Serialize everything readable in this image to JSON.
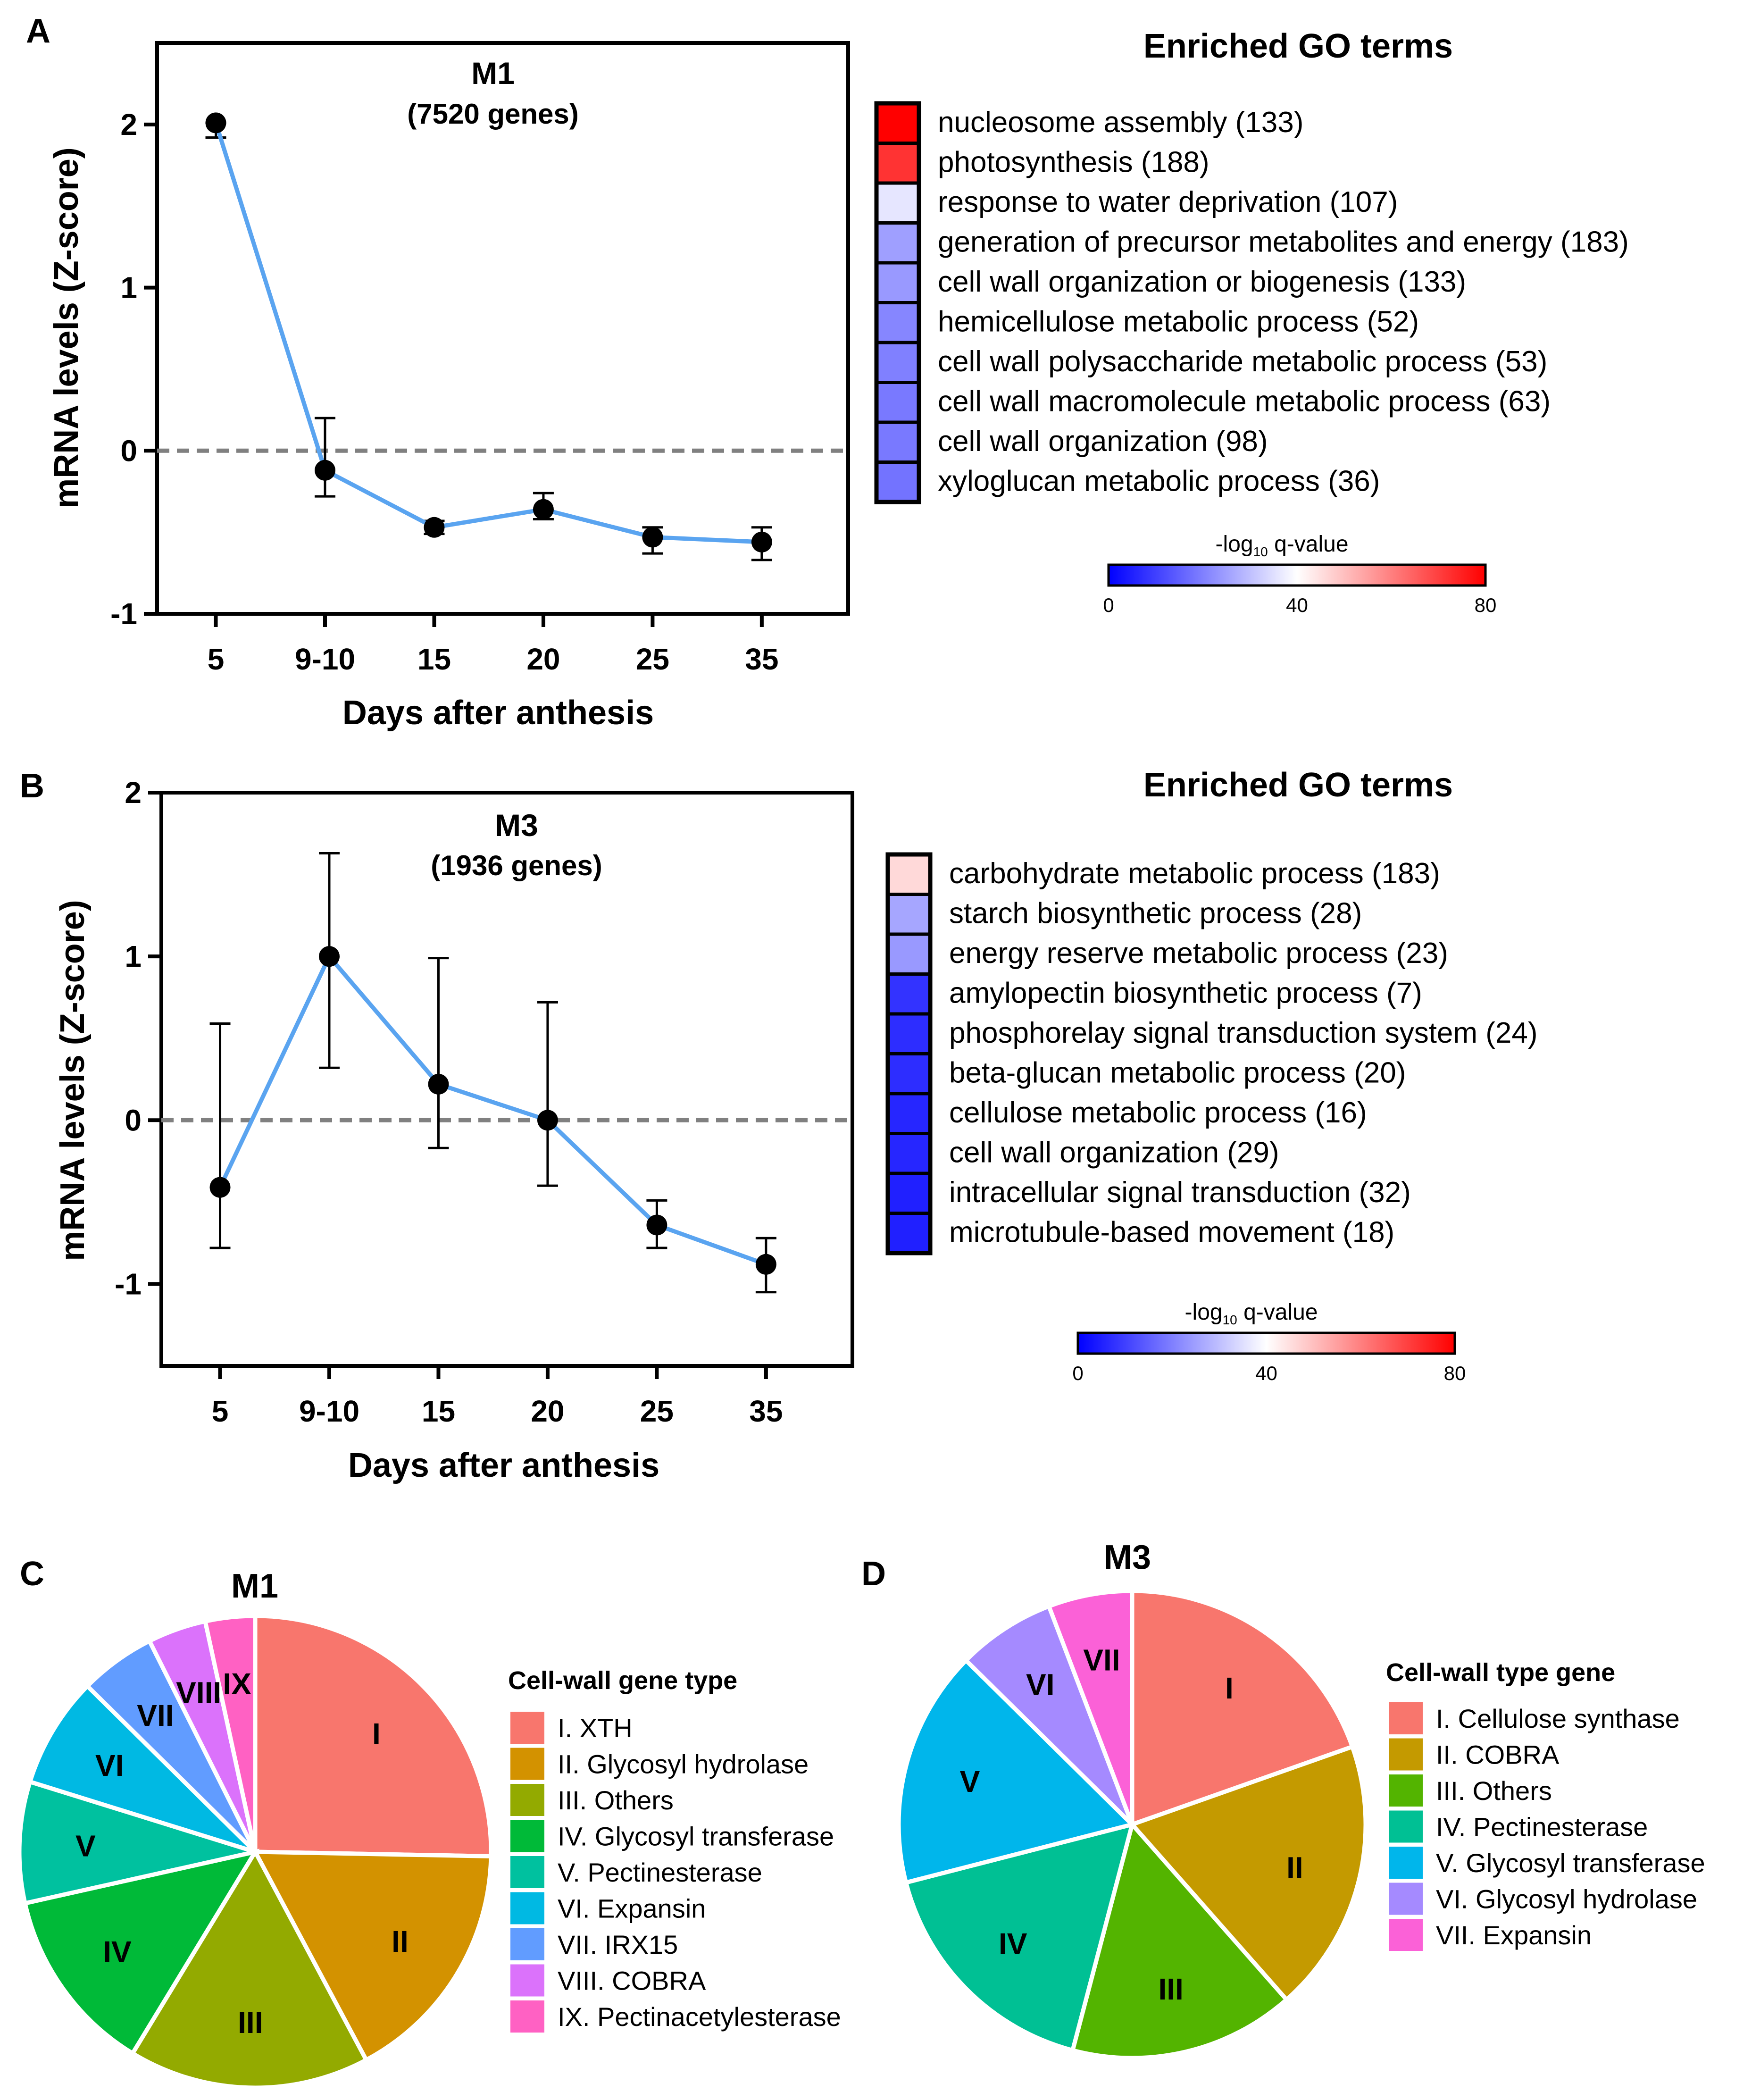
{
  "colors": {
    "line": "#5aa4f0",
    "point": "#000000",
    "zero_line": "#808080",
    "colorbar_low": "#0000ff",
    "colorbar_mid": "#ffffff",
    "colorbar_high": "#ff0000"
  },
  "chart_data": [
    {
      "panel": "A",
      "type": "line",
      "title": "M1",
      "subtitle": "(7520 genes)",
      "xlabel": "Days after anthesis",
      "ylabel": "mRNA levels (Z-score)",
      "categories": [
        "5",
        "9-10",
        "15",
        "20",
        "25",
        "35"
      ],
      "series": [
        {
          "name": "M1",
          "values": [
            2.01,
            -0.12,
            -0.47,
            -0.36,
            -0.53,
            -0.56
          ],
          "error_low": [
            1.92,
            -0.28,
            -0.51,
            -0.42,
            -0.63,
            -0.67
          ],
          "error_high": [
            2.01,
            0.2,
            -0.43,
            -0.26,
            -0.47,
            -0.47
          ]
        }
      ],
      "ylim": [
        -1,
        2.5
      ],
      "yticks": [
        "-1",
        "0",
        "1",
        "2"
      ],
      "reference_line": 0,
      "grid": false
    },
    {
      "panel": "A",
      "type": "heatmap",
      "title": "Enriched GO terms",
      "rows": [
        {
          "label": "nucleosome assembly (133)",
          "value": 80
        },
        {
          "label": "photosynthesis (188)",
          "value": 72
        },
        {
          "label": "response to water deprivation (107)",
          "value": 36
        },
        {
          "label": "generation of precursor metabolites and energy (183)",
          "value": 25
        },
        {
          "label": "cell wall organization or biogenesis (133)",
          "value": 24
        },
        {
          "label": "hemicellulose metabolic process (52)",
          "value": 21
        },
        {
          "label": "cell wall polysaccharide metabolic process (53)",
          "value": 20
        },
        {
          "label": "cell wall macromolecule metabolic process (63)",
          "value": 19
        },
        {
          "label": "cell wall organization (98)",
          "value": 19
        },
        {
          "label": "xyloglucan metabolic process (36)",
          "value": 18
        }
      ],
      "colorbar": {
        "label_prefix": "-log",
        "label_sub": "10",
        "label_suffix": " q-value",
        "ticks": [
          "0",
          "40",
          "80"
        ],
        "range": [
          0,
          80
        ]
      }
    },
    {
      "panel": "B",
      "type": "line",
      "title": "M3",
      "subtitle": "(1936 genes)",
      "xlabel": "Days after anthesis",
      "ylabel": "mRNA levels (Z-score)",
      "categories": [
        "5",
        "9-10",
        "15",
        "20",
        "25",
        "35"
      ],
      "series": [
        {
          "name": "M3",
          "values": [
            -0.41,
            1.0,
            0.22,
            0.0,
            -0.64,
            -0.88
          ],
          "error_low": [
            -0.78,
            0.32,
            -0.17,
            -0.4,
            -0.78,
            -1.05
          ],
          "error_high": [
            0.59,
            1.63,
            0.99,
            0.72,
            -0.49,
            -0.72
          ]
        }
      ],
      "ylim": [
        -1.5,
        2
      ],
      "yticks": [
        "-1",
        "0",
        "1",
        "2"
      ],
      "reference_line": 0,
      "grid": false
    },
    {
      "panel": "B",
      "type": "heatmap",
      "title": "Enriched GO terms",
      "rows": [
        {
          "label": "carbohydrate metabolic process (183)",
          "value": 46
        },
        {
          "label": "starch biosynthetic process (28)",
          "value": 26
        },
        {
          "label": "energy reserve metabolic process (23)",
          "value": 24
        },
        {
          "label": "amylopectin biosynthetic process (7)",
          "value": 8
        },
        {
          "label": "phosphorelay signal transduction system (24)",
          "value": 7
        },
        {
          "label": "beta-glucan metabolic process (20)",
          "value": 7
        },
        {
          "label": "cellulose metabolic process (16)",
          "value": 6
        },
        {
          "label": "cell wall organization (29)",
          "value": 6
        },
        {
          "label": "intracellular signal transduction (32)",
          "value": 5
        },
        {
          "label": "microtubule-based movement (18)",
          "value": 5
        }
      ],
      "colorbar": {
        "label_prefix": "-log",
        "label_sub": "10",
        "label_suffix": " q-value",
        "ticks": [
          "0",
          "40",
          "80"
        ],
        "range": [
          0,
          80
        ]
      }
    },
    {
      "panel": "C",
      "type": "pie",
      "title": "M1",
      "legend_title": "Cell-wall gene type",
      "slices": [
        {
          "short": "I",
          "label": "I. XTH",
          "fraction": 0.253,
          "color": "#f8766d"
        },
        {
          "short": "II",
          "label": "II. Glycosyl hydrolase",
          "fraction": 0.169,
          "color": "#d39200"
        },
        {
          "short": "III",
          "label": "III. Others",
          "fraction": 0.165,
          "color": "#93aa00"
        },
        {
          "short": "IV",
          "label": "IV. Glycosyl transferase",
          "fraction": 0.128,
          "color": "#00ba38"
        },
        {
          "short": "V",
          "label": "V. Pectinesterase",
          "fraction": 0.083,
          "color": "#00c19f"
        },
        {
          "short": "VI",
          "label": "VI. Expansin",
          "fraction": 0.076,
          "color": "#00b9e3"
        },
        {
          "short": "VII",
          "label": "VII. IRX15",
          "fraction": 0.052,
          "color": "#619cff"
        },
        {
          "short": "VIII",
          "label": "VIII. COBRA",
          "fraction": 0.04,
          "color": "#db72fb"
        },
        {
          "short": "IX",
          "label": "IX. Pectinacetylesterase",
          "fraction": 0.034,
          "color": "#ff61c3"
        }
      ],
      "legend": "right"
    },
    {
      "panel": "D",
      "type": "pie",
      "title": "M3",
      "legend_title": "Cell-wall type gene",
      "slices": [
        {
          "short": "I",
          "label": "I. Cellulose synthase",
          "fraction": 0.196,
          "color": "#f8766d"
        },
        {
          "short": "II",
          "label": "II. COBRA",
          "fraction": 0.189,
          "color": "#c49a00"
        },
        {
          "short": "III",
          "label": "III. Others",
          "fraction": 0.156,
          "color": "#53b400"
        },
        {
          "short": "IV",
          "label": "IV. Pectinesterase",
          "fraction": 0.169,
          "color": "#00c094"
        },
        {
          "short": "V",
          "label": "V. Glycosyl transferase",
          "fraction": 0.164,
          "color": "#00b6eb"
        },
        {
          "short": "VI",
          "label": "VI. Glycosyl hydrolase",
          "fraction": 0.068,
          "color": "#a58aff"
        },
        {
          "short": "VII",
          "label": "VII. Expansin",
          "fraction": 0.058,
          "color": "#fb61d7"
        }
      ],
      "legend": "right"
    }
  ],
  "panel_labels": [
    "A",
    "B",
    "C",
    "D"
  ]
}
